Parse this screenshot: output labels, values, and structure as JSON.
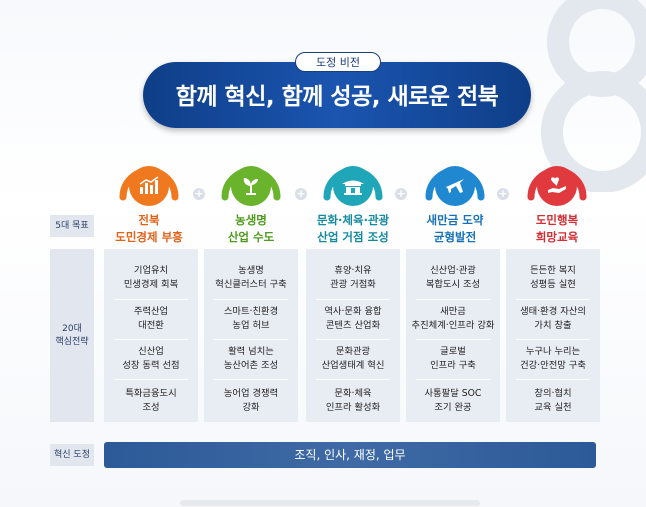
{
  "vision": {
    "tag": "도정 비전",
    "title": "함께 혁신, 함께 성공, 새로운 전북"
  },
  "row_labels": {
    "goals": "5대 목표",
    "strategies": [
      "20대",
      "핵심전략"
    ],
    "innovation": "혁신 도정"
  },
  "columns": [
    {
      "color": "#f0791f",
      "icon": "factory-chart-icon",
      "goal": [
        "전북",
        "도민경제 부흥"
      ],
      "strategies": [
        [
          "기업유치",
          "민생경제 회복"
        ],
        [
          "주력산업",
          "대전환"
        ],
        [
          "신산업",
          "성장 동력 선점"
        ],
        [
          "특화금융도시",
          "조성"
        ]
      ]
    },
    {
      "color": "#6ab42d",
      "icon": "sprout-icon",
      "goal": [
        "농생명",
        "산업 수도"
      ],
      "strategies": [
        [
          "농생명",
          "혁신클러스터 구축"
        ],
        [
          "스마트·친환경",
          "농업 허브"
        ],
        [
          "활력 넘치는",
          "농산어촌 조성"
        ],
        [
          "농어업 경쟁력",
          "강화"
        ]
      ]
    },
    {
      "color": "#1fa6b8",
      "icon": "hanok-icon",
      "goal": [
        "문화·체육·관광",
        "산업 거점 조성"
      ],
      "strategies": [
        [
          "휴양·치유",
          "관광 거점화"
        ],
        [
          "역사·문화 융합",
          "콘텐츠 산업화"
        ],
        [
          "문화관광",
          "산업생태계 혁신"
        ],
        [
          "문화·체육",
          "인프라 활성화"
        ]
      ]
    },
    {
      "color": "#1f88d0",
      "icon": "airplane-icon",
      "goal": [
        "새만금 도약",
        "균형발전"
      ],
      "strategies": [
        [
          "신산업·관광",
          "복합도시 조성"
        ],
        [
          "새만금",
          "추진체계·인프라 강화"
        ],
        [
          "글로벌",
          "인프라 구축"
        ],
        [
          "사통팔달 SOC",
          "조기 완공"
        ]
      ]
    },
    {
      "color": "#e03a3e",
      "icon": "hand-heart-icon",
      "goal": [
        "도민행복",
        "희망교육"
      ],
      "strategies": [
        [
          "든든한 복지",
          "성평등 실현"
        ],
        [
          "생태·환경 자산의",
          "가치 창출"
        ],
        [
          "누구나 누리는",
          "건강·안전망 구축"
        ],
        [
          "창의·협치",
          "교육 실천"
        ]
      ]
    }
  ],
  "innovation_bar": "조직, 인사, 재정, 업무"
}
